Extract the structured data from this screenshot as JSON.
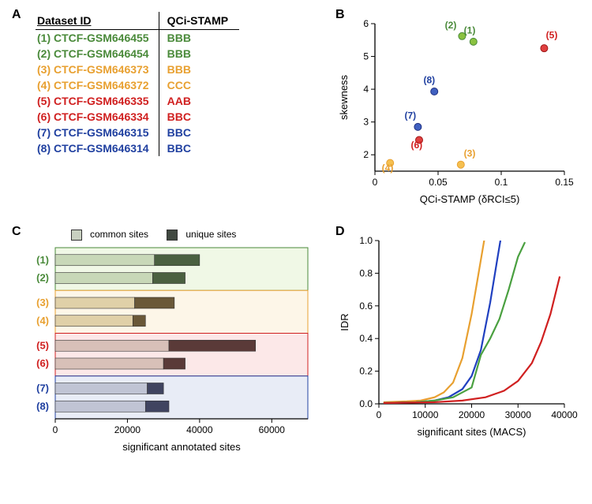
{
  "panelA": {
    "label": "A",
    "headers": {
      "col1": "Dataset ID",
      "col2": "QCi-STAMP"
    },
    "rows": [
      {
        "id": "(1) CTCF-GSM646455",
        "stamp": "BBB",
        "color": "#4a8a3a"
      },
      {
        "id": "(2) CTCF-GSM646454",
        "stamp": "BBB",
        "color": "#4a8a3a"
      },
      {
        "id": "(3) CTCF-GSM646373",
        "stamp": "BBB",
        "color": "#e8a030"
      },
      {
        "id": "(4) CTCF-GSM646372",
        "stamp": "CCC",
        "color": "#e8a030"
      },
      {
        "id": "(5) CTCF-GSM646335",
        "stamp": "AAB",
        "color": "#d02020"
      },
      {
        "id": "(6) CTCF-GSM646334",
        "stamp": "BBC",
        "color": "#d02020"
      },
      {
        "id": "(7) CTCF-GSM646315",
        "stamp": "BBC",
        "color": "#2040a0"
      },
      {
        "id": "(8) CTCF-GSM646314",
        "stamp": "BBC",
        "color": "#2040a0"
      }
    ]
  },
  "panelB": {
    "label": "B",
    "type": "scatter",
    "xlabel": "QCi-STAMP (δRCI≤5)",
    "ylabel": "skewness",
    "xlim": [
      0,
      0.15
    ],
    "ylim": [
      1.5,
      6
    ],
    "xticks": [
      0,
      0.05,
      0.1,
      0.15
    ],
    "yticks": [
      2,
      3,
      4,
      5,
      6
    ],
    "tick_fontsize": 12,
    "label_fontsize": 13,
    "point_label_fontsize": 12,
    "marker_radius": 4.5,
    "points": [
      {
        "n": "(1)",
        "x": 0.078,
        "y": 5.45,
        "fill": "#8ac240",
        "stroke": "#4a8a3a",
        "lx": 0.075,
        "ly": 5.7,
        "lcolor": "#4a8a3a"
      },
      {
        "n": "(2)",
        "x": 0.069,
        "y": 5.62,
        "fill": "#8ac240",
        "stroke": "#4a8a3a",
        "lx": 0.06,
        "ly": 5.85,
        "lcolor": "#4a8a3a"
      },
      {
        "n": "(3)",
        "x": 0.068,
        "y": 1.7,
        "fill": "#f5c050",
        "stroke": "#e8a030",
        "lx": 0.075,
        "ly": 1.95,
        "lcolor": "#e8a030"
      },
      {
        "n": "(4)",
        "x": 0.012,
        "y": 1.75,
        "fill": "#f5c050",
        "stroke": "#e8a030",
        "lx": 0.01,
        "ly": 1.5,
        "lcolor": "#e8a030"
      },
      {
        "n": "(5)",
        "x": 0.134,
        "y": 5.25,
        "fill": "#e04040",
        "stroke": "#a01818",
        "lx": 0.14,
        "ly": 5.55,
        "lcolor": "#d02020"
      },
      {
        "n": "(6)",
        "x": 0.035,
        "y": 2.45,
        "fill": "#e04040",
        "stroke": "#a01818",
        "lx": 0.033,
        "ly": 2.2,
        "lcolor": "#d02020"
      },
      {
        "n": "(7)",
        "x": 0.034,
        "y": 2.85,
        "fill": "#4060c0",
        "stroke": "#203080",
        "lx": 0.028,
        "ly": 3.1,
        "lcolor": "#2040a0"
      },
      {
        "n": "(8)",
        "x": 0.047,
        "y": 3.93,
        "fill": "#4060c0",
        "stroke": "#203080",
        "lx": 0.043,
        "ly": 4.18,
        "lcolor": "#2040a0"
      }
    ]
  },
  "panelC": {
    "label": "C",
    "type": "bar",
    "xlabel": "significant annotated sites",
    "xlim": [
      0,
      70000
    ],
    "xticks": [
      0,
      20000,
      40000,
      60000
    ],
    "legend": {
      "common": "common sites",
      "unique": "unique sites"
    },
    "groups": [
      {
        "bg": "#f0f8e6",
        "lcolor": "#4a8a3a",
        "common_fill": "#c8d8b8",
        "unique_fill": "#4a6040",
        "bars": [
          {
            "n": "(1)",
            "common": 27500,
            "unique": 12500
          },
          {
            "n": "(2)",
            "common": 27000,
            "unique": 9000
          }
        ]
      },
      {
        "bg": "#fdf6e8",
        "lcolor": "#e8a030",
        "common_fill": "#e0d0a8",
        "unique_fill": "#6a5838",
        "bars": [
          {
            "n": "(3)",
            "common": 22000,
            "unique": 11000
          },
          {
            "n": "(4)",
            "common": 21500,
            "unique": 3500
          }
        ]
      },
      {
        "bg": "#fce8e8",
        "lcolor": "#d02020",
        "common_fill": "#d8c0b8",
        "unique_fill": "#5a3a38",
        "bars": [
          {
            "n": "(5)",
            "common": 31500,
            "unique": 24000
          },
          {
            "n": "(6)",
            "common": 30000,
            "unique": 6000
          }
        ]
      },
      {
        "bg": "#e8ecf6",
        "lcolor": "#2040a0",
        "common_fill": "#c0c4d4",
        "unique_fill": "#404460",
        "bars": [
          {
            "n": "(7)",
            "common": 25500,
            "unique": 4500
          },
          {
            "n": "(8)",
            "common": 25000,
            "unique": 6500
          }
        ]
      }
    ]
  },
  "panelD": {
    "label": "D",
    "type": "line",
    "xlabel": "significant sites (MACS)",
    "ylabel": "IDR",
    "xlim": [
      0,
      40000
    ],
    "ylim": [
      0,
      1.0
    ],
    "xticks": [
      0,
      10000,
      20000,
      30000,
      40000
    ],
    "yticks": [
      0.0,
      0.2,
      0.4,
      0.6,
      0.8,
      1.0
    ],
    "line_width": 2.2,
    "series": [
      {
        "color": "#e8a030",
        "pts": [
          [
            1000,
            0.01
          ],
          [
            6000,
            0.015
          ],
          [
            9000,
            0.02
          ],
          [
            12000,
            0.04
          ],
          [
            14000,
            0.07
          ],
          [
            16000,
            0.13
          ],
          [
            18000,
            0.28
          ],
          [
            20000,
            0.55
          ],
          [
            21500,
            0.8
          ],
          [
            23000,
            1.05
          ]
        ]
      },
      {
        "color": "#2040c0",
        "pts": [
          [
            1000,
            0.005
          ],
          [
            8000,
            0.01
          ],
          [
            12000,
            0.02
          ],
          [
            15000,
            0.04
          ],
          [
            18000,
            0.09
          ],
          [
            20000,
            0.17
          ],
          [
            22000,
            0.33
          ],
          [
            24000,
            0.62
          ],
          [
            25500,
            0.88
          ],
          [
            26500,
            1.05
          ]
        ]
      },
      {
        "color": "#4aa040",
        "pts": [
          [
            1000,
            0.005
          ],
          [
            8000,
            0.01
          ],
          [
            12000,
            0.02
          ],
          [
            16000,
            0.04
          ],
          [
            20000,
            0.1
          ],
          [
            22000,
            0.3
          ],
          [
            24000,
            0.4
          ],
          [
            26000,
            0.52
          ],
          [
            28000,
            0.7
          ],
          [
            30000,
            0.9
          ],
          [
            31500,
            0.99
          ]
        ]
      },
      {
        "color": "#d02020",
        "pts": [
          [
            1000,
            0.005
          ],
          [
            12000,
            0.01
          ],
          [
            18000,
            0.02
          ],
          [
            23000,
            0.04
          ],
          [
            27000,
            0.08
          ],
          [
            30000,
            0.14
          ],
          [
            33000,
            0.25
          ],
          [
            35000,
            0.38
          ],
          [
            37000,
            0.55
          ],
          [
            39000,
            0.78
          ]
        ]
      }
    ]
  }
}
